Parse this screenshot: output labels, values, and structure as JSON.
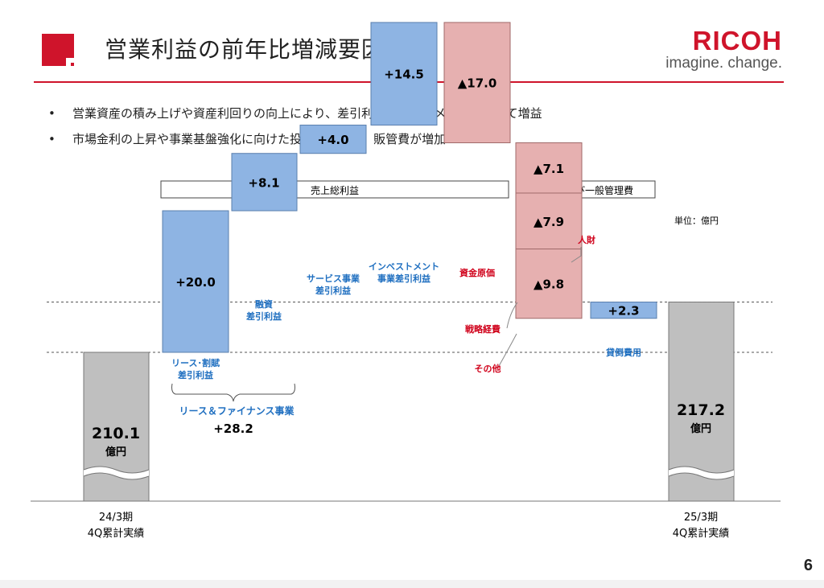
{
  "header": {
    "title": "営業利益の前年比増減要因",
    "brand": "RICOH",
    "tagline": "imagine. change.",
    "accent": "#cf142b"
  },
  "bullets": [
    "営業資産の積み上げや資産利回りの向上により、差引利益は全セグメントにおいて増益",
    "市場金利の上昇や事業基盤強化に向けた投資等により、販管費が増加"
  ],
  "page_number": "6",
  "chart_data": {
    "type": "bar",
    "subtype": "waterfall",
    "unit": "単位：億円",
    "group_boxes": [
      "売上総利益",
      "販売費及び一般管理費"
    ],
    "start": {
      "value": 210.1,
      "value_label": "210.1",
      "unit_label": "億円",
      "label_lines": [
        "24/3期",
        "4Q累計実績"
      ]
    },
    "end": {
      "value": 217.2,
      "value_label": "217.2",
      "unit_label": "億円",
      "label_lines": [
        "25/3期",
        "4Q累計実績"
      ]
    },
    "steps": [
      {
        "value": 20.0,
        "value_label": "+20.0",
        "label_lines": [
          "リース･割賦",
          "差引利益"
        ],
        "color": "#8eb4e3",
        "label_color": "#1f6fc0"
      },
      {
        "value": 8.1,
        "value_label": "+8.1",
        "label_lines": [
          "融資",
          "差引利益"
        ],
        "color": "#8eb4e3",
        "label_color": "#1f6fc0"
      },
      {
        "value": 4.0,
        "value_label": "+4.0",
        "label_lines": [
          "サービス事業",
          "差引利益"
        ],
        "color": "#8eb4e3",
        "label_color": "#1f6fc0"
      },
      {
        "value": 14.5,
        "value_label": "+14.5",
        "label_lines": [
          "インベストメント",
          "事業差引利益"
        ],
        "color": "#8eb4e3",
        "label_color": "#1f6fc0"
      },
      {
        "value": -17.0,
        "value_label": "▲17.0",
        "label_lines": [
          "資金原価"
        ],
        "color": "#e6b0b0",
        "label_color": "#d0021b"
      },
      {
        "value": -24.8,
        "stack": [
          {
            "value": -7.1,
            "value_label": "▲7.1",
            "label": "人財"
          },
          {
            "value": -7.9,
            "value_label": "▲7.9",
            "label": "戦略経費"
          },
          {
            "value": -9.8,
            "value_label": "▲9.8",
            "label": "その他"
          }
        ],
        "color": "#e6b0b0",
        "label_color": "#d0021b"
      },
      {
        "value": 2.3,
        "value_label": "+2.3",
        "label_lines": [
          "貸倒費用"
        ],
        "color": "#8eb4e3",
        "label_color": "#1f6fc0"
      }
    ],
    "group_annotation": {
      "label": "リース＆ファイナンス事業",
      "value_label": "+28.2"
    }
  }
}
